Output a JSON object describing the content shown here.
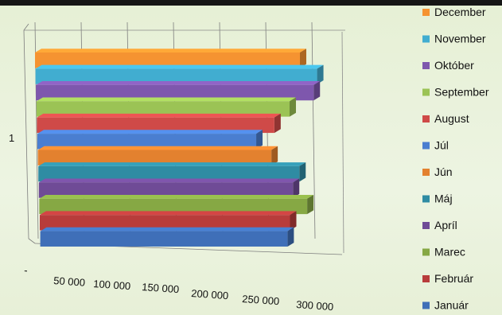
{
  "chart_data": {
    "type": "bar",
    "orientation": "horizontal",
    "style": "3d-clustered",
    "categories": [
      "1"
    ],
    "series": [
      {
        "name": "Január",
        "values": [
          252000
        ],
        "color": "#3f6fb8"
      },
      {
        "name": "Február",
        "values": [
          255000
        ],
        "color": "#b83c3b"
      },
      {
        "name": "Marec",
        "values": [
          273000
        ],
        "color": "#86a844"
      },
      {
        "name": "Apríl",
        "values": [
          259000
        ],
        "color": "#6f4b96"
      },
      {
        "name": "Máj",
        "values": [
          266000
        ],
        "color": "#2f8ca3"
      },
      {
        "name": "Jún",
        "values": [
          238000
        ],
        "color": "#e3812f"
      },
      {
        "name": "Júl",
        "values": [
          223000
        ],
        "color": "#4a7ed0"
      },
      {
        "name": "August",
        "values": [
          242000
        ],
        "color": "#cf4a48"
      },
      {
        "name": "September",
        "values": [
          258000
        ],
        "color": "#9bc355"
      },
      {
        "name": "Október",
        "values": [
          283000
        ],
        "color": "#7e57ad"
      },
      {
        "name": "November",
        "values": [
          287000
        ],
        "color": "#41add0"
      },
      {
        "name": "December",
        "values": [
          270000
        ],
        "color": "#f59331"
      }
    ],
    "x_tick_labels": [
      "-",
      "50 000",
      "100 000",
      "150 000",
      "200 000",
      "250 000",
      "300 000"
    ],
    "y_tick_labels": [
      "1"
    ],
    "xlim": [
      0,
      300000
    ],
    "grid": true,
    "legend_position": "right",
    "title": "",
    "xlabel": "",
    "ylabel": ""
  }
}
